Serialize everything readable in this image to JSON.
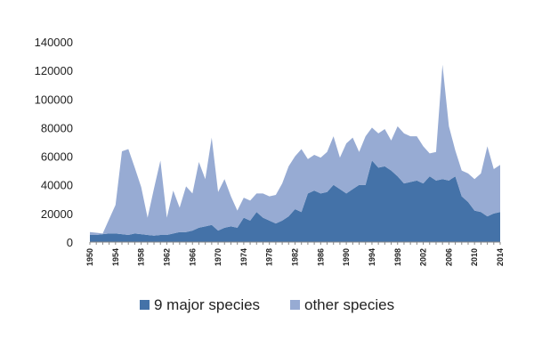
{
  "chart_data": {
    "type": "area",
    "stacked": true,
    "title": "",
    "xlabel": "",
    "ylabel": "",
    "ylim": [
      0,
      140000
    ],
    "yticks": [
      "0",
      "20000",
      "40000",
      "60000",
      "80000",
      "100000",
      "120000",
      "140000"
    ],
    "xticks": [
      "1950",
      "1954",
      "1958",
      "1962",
      "1966",
      "1970",
      "1974",
      "1978",
      "1982",
      "1986",
      "1990",
      "1994",
      "1998",
      "2002",
      "2006",
      "2010",
      "2014"
    ],
    "grid": false,
    "legend_position": "bottom",
    "x": [
      1950,
      1951,
      1952,
      1953,
      1954,
      1955,
      1956,
      1957,
      1958,
      1959,
      1960,
      1961,
      1962,
      1963,
      1964,
      1965,
      1966,
      1967,
      1968,
      1969,
      1970,
      1971,
      1972,
      1973,
      1974,
      1975,
      1976,
      1977,
      1978,
      1979,
      1980,
      1981,
      1982,
      1983,
      1984,
      1985,
      1986,
      1987,
      1988,
      1989,
      1990,
      1991,
      1992,
      1993,
      1994,
      1995,
      1996,
      1997,
      1998,
      1999,
      2000,
      2001,
      2002,
      2003,
      2004,
      2005,
      2006,
      2007,
      2008,
      2009,
      2010,
      2011,
      2012,
      2013,
      2014
    ],
    "series": [
      {
        "name": "9 major species",
        "color": "#4472a8",
        "values": [
          5000,
          5000,
          5500,
          6000,
          6000,
          5500,
          5000,
          6000,
          5500,
          5000,
          4500,
          5000,
          5000,
          6000,
          7000,
          7000,
          8000,
          10000,
          11000,
          12000,
          8000,
          10000,
          11000,
          10000,
          17000,
          15000,
          21000,
          17000,
          15000,
          13000,
          15000,
          18000,
          23000,
          21000,
          34000,
          36000,
          34000,
          35000,
          40000,
          37000,
          34000,
          37000,
          40000,
          40000,
          57000,
          52000,
          53000,
          50000,
          46000,
          41000,
          42000,
          43000,
          41000,
          46000,
          43000,
          44000,
          43000,
          46000,
          32000,
          28000,
          22000,
          21000,
          18000,
          20000,
          21000
        ]
      },
      {
        "name": "other species",
        "color": "#97abd3",
        "values": [
          2000,
          1500,
          500,
          10000,
          20000,
          58000,
          60000,
          46000,
          33000,
          12000,
          33000,
          52000,
          12000,
          30000,
          17000,
          32000,
          26000,
          46000,
          33000,
          61000,
          27000,
          34000,
          21000,
          12000,
          14000,
          14000,
          13000,
          17000,
          17000,
          20000,
          26000,
          35000,
          37000,
          44000,
          24000,
          25000,
          25000,
          28000,
          34000,
          22000,
          35000,
          36000,
          23000,
          34000,
          23000,
          24000,
          26000,
          21000,
          35000,
          35000,
          32000,
          31000,
          26000,
          16000,
          20000,
          80000,
          38000,
          18000,
          18000,
          20000,
          22000,
          27000,
          49000,
          31000,
          33000
        ]
      }
    ]
  }
}
